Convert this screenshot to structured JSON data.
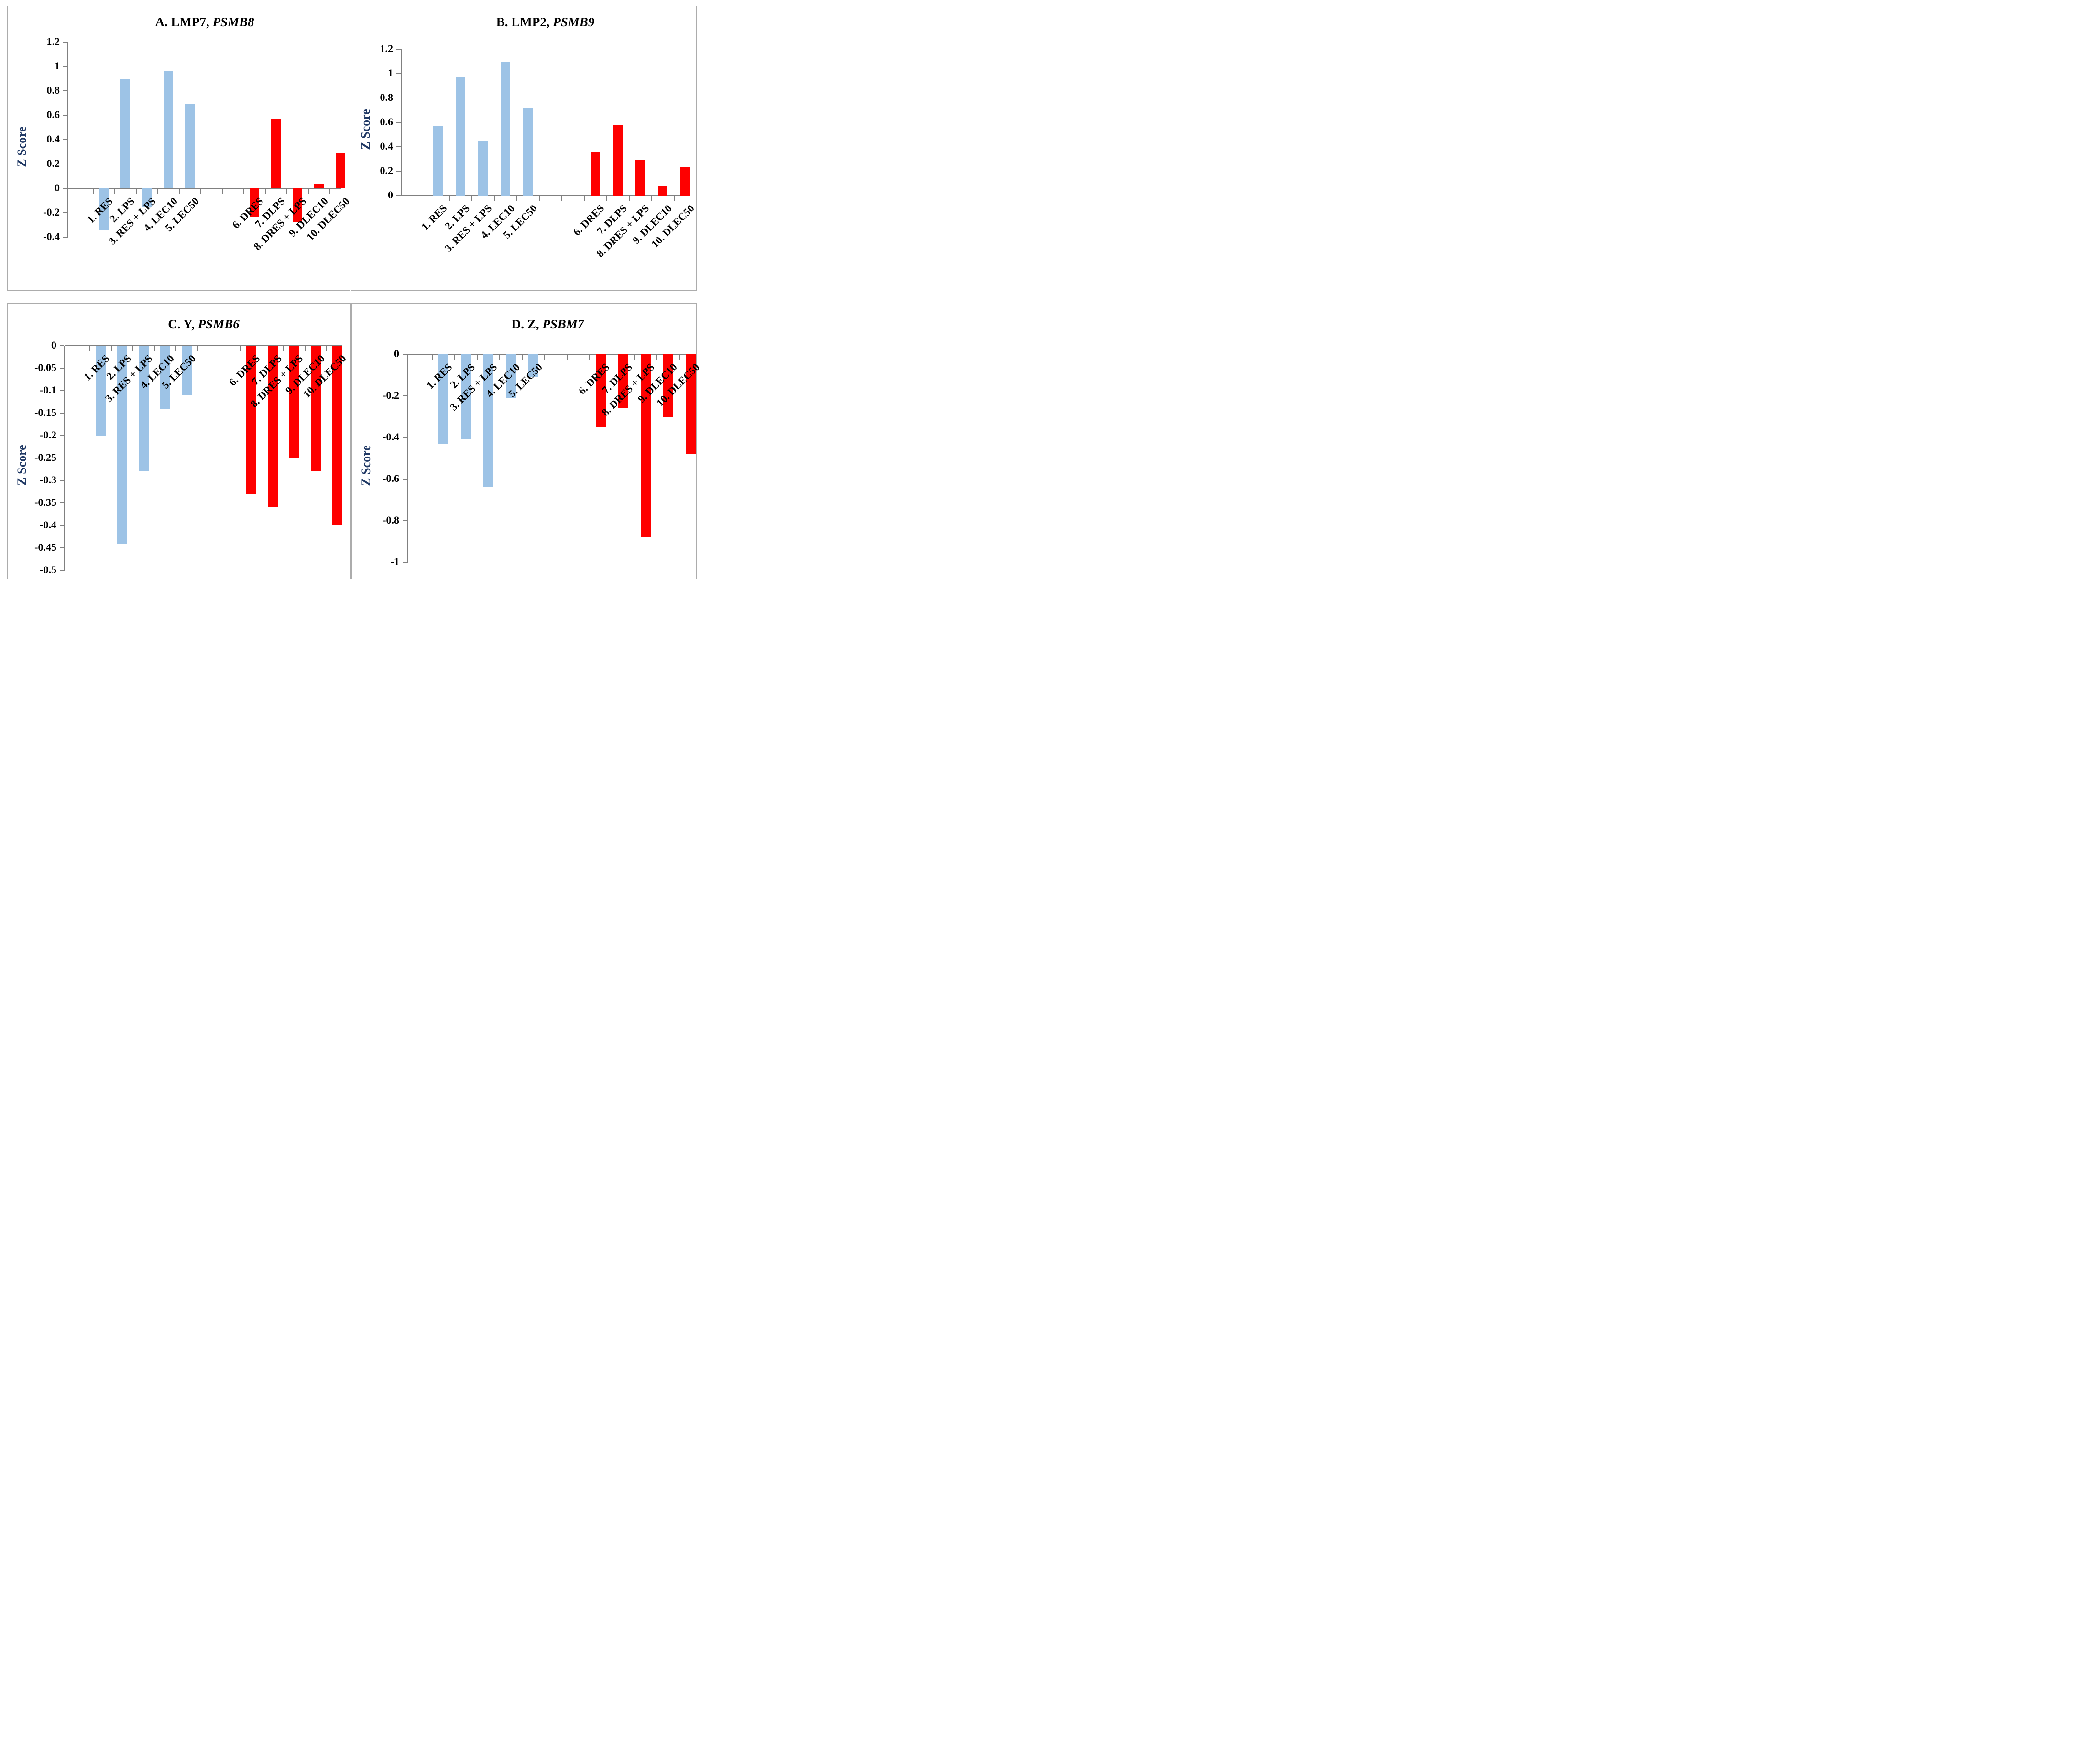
{
  "figure": {
    "description_visible_text_only": "Four bar-chart panels of Z Scores",
    "shared_categories": [
      "1. RES",
      "2. LPS",
      "3. RES + LPS",
      "4. LEC10",
      "5. LEC50",
      "6. DRES",
      "7. DLPS",
      "8. DRES + LPS",
      "9. DLEC10",
      "10. DLEC50"
    ]
  },
  "colors": {
    "blue_bar": "#9DC3E6",
    "red_bar": "#FE0000",
    "ylabel_text": "#1F3864",
    "axis_line": "#808080",
    "panel_border": "#ACACAC",
    "tick_text": "#000000"
  },
  "chart_data": [
    {
      "type": "bar",
      "panel": "A",
      "title": "A. LMP7, PSMB8",
      "title_main": "A. LMP7,",
      "title_gene": "PSMB8",
      "ylabel": "Z Score",
      "xlabel": "",
      "grid": "off",
      "legend": "none",
      "ylim": [
        -0.4,
        1.2
      ],
      "yticks": [
        1.2,
        1,
        0.8,
        0.6,
        0.4,
        0.2,
        0,
        -0.2,
        -0.4
      ],
      "ytick_labels": [
        "1.2",
        "1",
        "0.8",
        "0.6",
        "0.4",
        "0.2",
        "0",
        "-0.2",
        "-0.4"
      ],
      "categories": [
        "1. RES",
        "2. LPS",
        "3. RES + LPS",
        "4. LEC10",
        "5. LEC50",
        "6. DRES",
        "7. DLPS",
        "8. DRES + LPS",
        "9. DLEC10",
        "10. DLEC50"
      ],
      "values": [
        -0.34,
        0.9,
        -0.15,
        0.96,
        0.69,
        -0.23,
        0.57,
        -0.28,
        0.04,
        0.29
      ],
      "bar_colors": [
        "blue",
        "blue",
        "blue",
        "blue",
        "blue",
        "red",
        "red",
        "red",
        "red",
        "red"
      ]
    },
    {
      "type": "bar",
      "panel": "B",
      "title": "B. LMP2, PSMB9",
      "title_main": "B. LMP2,",
      "title_gene": "PSMB9",
      "ylabel": "Z Score",
      "xlabel": "",
      "grid": "off",
      "legend": "none",
      "ylim": [
        0,
        1.2
      ],
      "yticks": [
        1.2,
        1,
        0.8,
        0.6,
        0.4,
        0.2,
        0
      ],
      "ytick_labels": [
        "1.2",
        "1",
        "0.8",
        "0.6",
        "0.4",
        "0.2",
        "0"
      ],
      "categories": [
        "1. RES",
        "2. LPS",
        "3. RES + LPS",
        "4. LEC10",
        "5. LEC50",
        "6. DRES",
        "7. DLPS",
        "8. DRES + LPS",
        "9. DLEC10",
        "10. DLEC50"
      ],
      "values": [
        0.57,
        0.97,
        0.45,
        1.1,
        0.72,
        0.36,
        0.58,
        0.29,
        0.08,
        0.23
      ],
      "bar_colors": [
        "blue",
        "blue",
        "blue",
        "blue",
        "blue",
        "red",
        "red",
        "red",
        "red",
        "red"
      ]
    },
    {
      "type": "bar",
      "panel": "C",
      "title": "C. Y, PSMB6",
      "title_main": "C. Y,",
      "title_gene": "PSMB6",
      "ylabel": "Z Score",
      "xlabel": "",
      "grid": "off",
      "legend": "none",
      "ylim": [
        -0.5,
        0
      ],
      "yticks": [
        0,
        -0.05,
        -0.1,
        -0.15,
        -0.2,
        -0.25,
        -0.3,
        -0.35,
        -0.4,
        -0.45,
        -0.5
      ],
      "ytick_labels": [
        "0",
        "-0.05",
        "-0.1",
        "-0.15",
        "-0.2",
        "-0.25",
        "-0.3",
        "-0.35",
        "-0.4",
        "-0.45",
        "-0.5"
      ],
      "categories": [
        "1. RES",
        "2. LPS",
        "3. RES + LPS",
        "4. LEC10",
        "5. LEC50",
        "6. DRES",
        "7. DLPS",
        "8. DRES + LPS",
        "9. DLEC10",
        "10. DLEC50"
      ],
      "values": [
        -0.2,
        -0.44,
        -0.28,
        -0.14,
        -0.11,
        -0.33,
        -0.36,
        -0.25,
        -0.28,
        -0.4
      ],
      "bar_colors": [
        "blue",
        "blue",
        "blue",
        "blue",
        "blue",
        "red",
        "red",
        "red",
        "red",
        "red"
      ]
    },
    {
      "type": "bar",
      "panel": "D",
      "title": "D. Z, PSBM7",
      "title_main": "D. Z,",
      "title_gene": "PSBM7",
      "ylabel": "Z Score",
      "xlabel": "",
      "grid": "off",
      "legend": "none",
      "ylim": [
        -1,
        0
      ],
      "yticks": [
        0,
        -0.2,
        -0.4,
        -0.6,
        -0.8,
        -1
      ],
      "ytick_labels": [
        "0",
        "-0.2",
        "-0.4",
        "-0.6",
        "-0.8",
        "-1"
      ],
      "categories": [
        "1. RES",
        "2. LPS",
        "3. RES + LPS",
        "4. LEC10",
        "5. LEC50",
        "6. DRES",
        "7. DLPS",
        "8. DRES + LPS",
        "9. DLEC10",
        "10. DLEC50"
      ],
      "values": [
        -0.43,
        -0.41,
        -0.64,
        -0.21,
        -0.11,
        -0.35,
        -0.26,
        -0.88,
        -0.3,
        -0.48
      ],
      "bar_colors": [
        "blue",
        "blue",
        "blue",
        "blue",
        "blue",
        "red",
        "red",
        "red",
        "red",
        "red"
      ]
    }
  ]
}
